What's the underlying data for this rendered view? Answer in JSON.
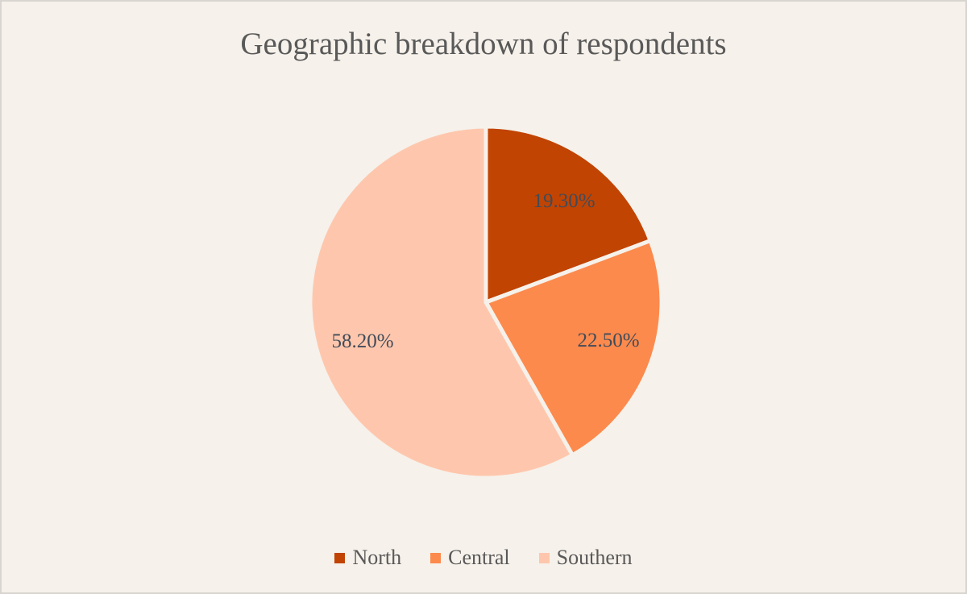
{
  "page": {
    "background": "#F6F1EA",
    "border_color": "#D8D4CF"
  },
  "chart_data": {
    "type": "pie",
    "title": "Geographic breakdown of respondents",
    "categories": [
      "North",
      "Central",
      "Southern"
    ],
    "values": [
      19.3,
      22.5,
      58.2
    ],
    "data_labels": [
      "19.30%",
      "22.50%",
      "58.20%"
    ],
    "colors": [
      "#C14402",
      "#FC8A4D",
      "#FEC7AD"
    ],
    "slice_border_color": "#F6F1EA",
    "start_angle_deg": 0,
    "direction": "clockwise",
    "legend_position": "bottom",
    "title_color": "#595959",
    "data_label_color": "#414B59",
    "legend_text_color": "#595959"
  }
}
